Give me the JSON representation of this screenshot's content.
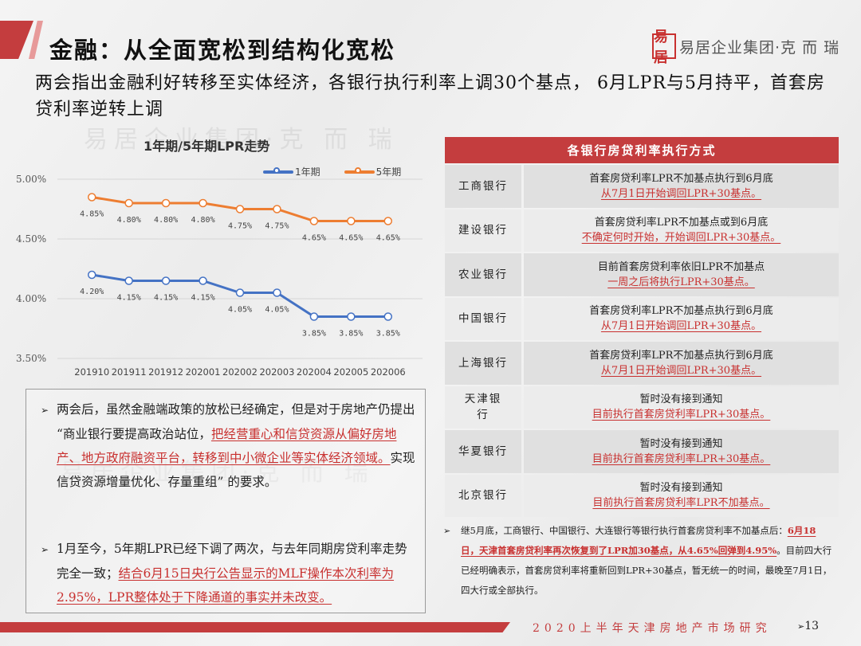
{
  "header": {
    "title": "金融：从全面宽松到结构化宽松",
    "subtitle": "两会指出金融利好转移至实体经济，各银行执行利率上调30个基点， 6月LPR与5月持平，首套房贷利率逆转上调",
    "logo_seal": "易居",
    "logo_text": "易居企业集团·克 而 瑞",
    "watermark": "易居企业集团·克 而 瑞"
  },
  "colors": {
    "brand_red": "#c43d3e",
    "series_1y": "#4472c4",
    "series_5y": "#ed7d31"
  },
  "chart_data": {
    "type": "line",
    "title": "1年期/5年期LPR走势",
    "categories": [
      "201910",
      "201911",
      "201912",
      "202001",
      "202002",
      "202003",
      "202004",
      "202005",
      "202006"
    ],
    "series": [
      {
        "name": "1年期",
        "values": [
          4.2,
          4.15,
          4.15,
          4.15,
          4.05,
          4.05,
          3.85,
          3.85,
          3.85
        ],
        "labels": [
          "4.20%",
          "4.15%",
          "4.15%",
          "4.15%",
          "4.05%",
          "4.05%",
          "3.85%",
          "3.85%",
          "3.85%"
        ]
      },
      {
        "name": "5年期",
        "values": [
          4.85,
          4.8,
          4.8,
          4.8,
          4.75,
          4.75,
          4.65,
          4.65,
          4.65
        ],
        "labels": [
          "4.85%",
          "4.80%",
          "4.80%",
          "4.80%",
          "4.75%",
          "4.75%",
          "4.65%",
          "4.65%",
          "4.65%"
        ]
      }
    ],
    "yticks": [
      "5.00%",
      "4.50%",
      "4.00%",
      "3.50%"
    ],
    "ylim": [
      3.5,
      5.0
    ],
    "xlabel": "",
    "ylabel": "",
    "grid": true,
    "legend_position": "top-right"
  },
  "left_box": {
    "para1": {
      "bullet": "➢",
      "pre": "两会后，虽然金融端政策的放松已经确定，但是对于房地产仍提出 “商业银行要提高政治站位，",
      "highlight": "把经营重心和信贷资源从偏好房地产、地方政府融资平台，转移到中小微企业等实体经济领域。",
      "post": "实现信贷资源增量优化、存量重组” 的要求。"
    },
    "para2": {
      "bullet": "➢",
      "pre": "1月至今，5年期LPR已经下调了两次，与去年同期房贷利率走势完全一致；",
      "highlight": "结合6月15日央行公告显示的MLF操作本次利率为2.95%，LPR整体处于下降通道的事实并未改变。"
    }
  },
  "table": {
    "header": "各银行房贷利率执行方式",
    "rows": [
      {
        "bank": "工商银行",
        "line1": "首套房贷利率LPR不加基点执行到6月底",
        "line2": "从7月1日开始调回LPR+30基点。"
      },
      {
        "bank": "建设银行",
        "line1": "首套房贷利率LPR不加基点或到6月底",
        "line2": "不确定何时开始，开始调回LPR+30基点。"
      },
      {
        "bank": "农业银行",
        "line1": "目前首套房贷利率依旧LPR不加基点",
        "line2": "一周之后将执行LPR+30基点。"
      },
      {
        "bank": "中国银行",
        "line1": "首套房贷利率LPR不加基点执行到6月底",
        "line2": "从7月1日开始调回LPR+30基点。"
      },
      {
        "bank": "上海银行",
        "line1": "首套房贷利率LPR不加基点执行到6月底",
        "line2": "从7月1日开始调回LPR+30基点。"
      },
      {
        "bank": "天津银行",
        "line1": "暂时没有接到通知",
        "line2": "目前执行首套房贷利率LPR+30基点。"
      },
      {
        "bank": "华夏银行",
        "line1": "暂时没有接到通知",
        "line2": "目前执行首套房贷利率LPR+30基点。"
      },
      {
        "bank": "北京银行",
        "line1": "暂时没有接到通知",
        "line2": "目前执行首套房贷利率LPR不加基点。"
      }
    ]
  },
  "note": {
    "bullet": "➢",
    "pre": "继5月底，工商银行、中国银行、大连银行等银行执行首套房贷利率不加基点后：",
    "highlight": "6月18日，天津首套房贷利率再次恢复到了LPR加30基点，从4.65%回弹到4.95%",
    "post": "。目前四大行已经明确表示，首套房贷利率将重新回到LPR+30基点，暂无统一的时间，最晚至7月1日，四大行或全部执行。"
  },
  "footer": {
    "text": "2020上半年天津房地产市场研究",
    "page_marker": "➢",
    "page_number": "13"
  }
}
